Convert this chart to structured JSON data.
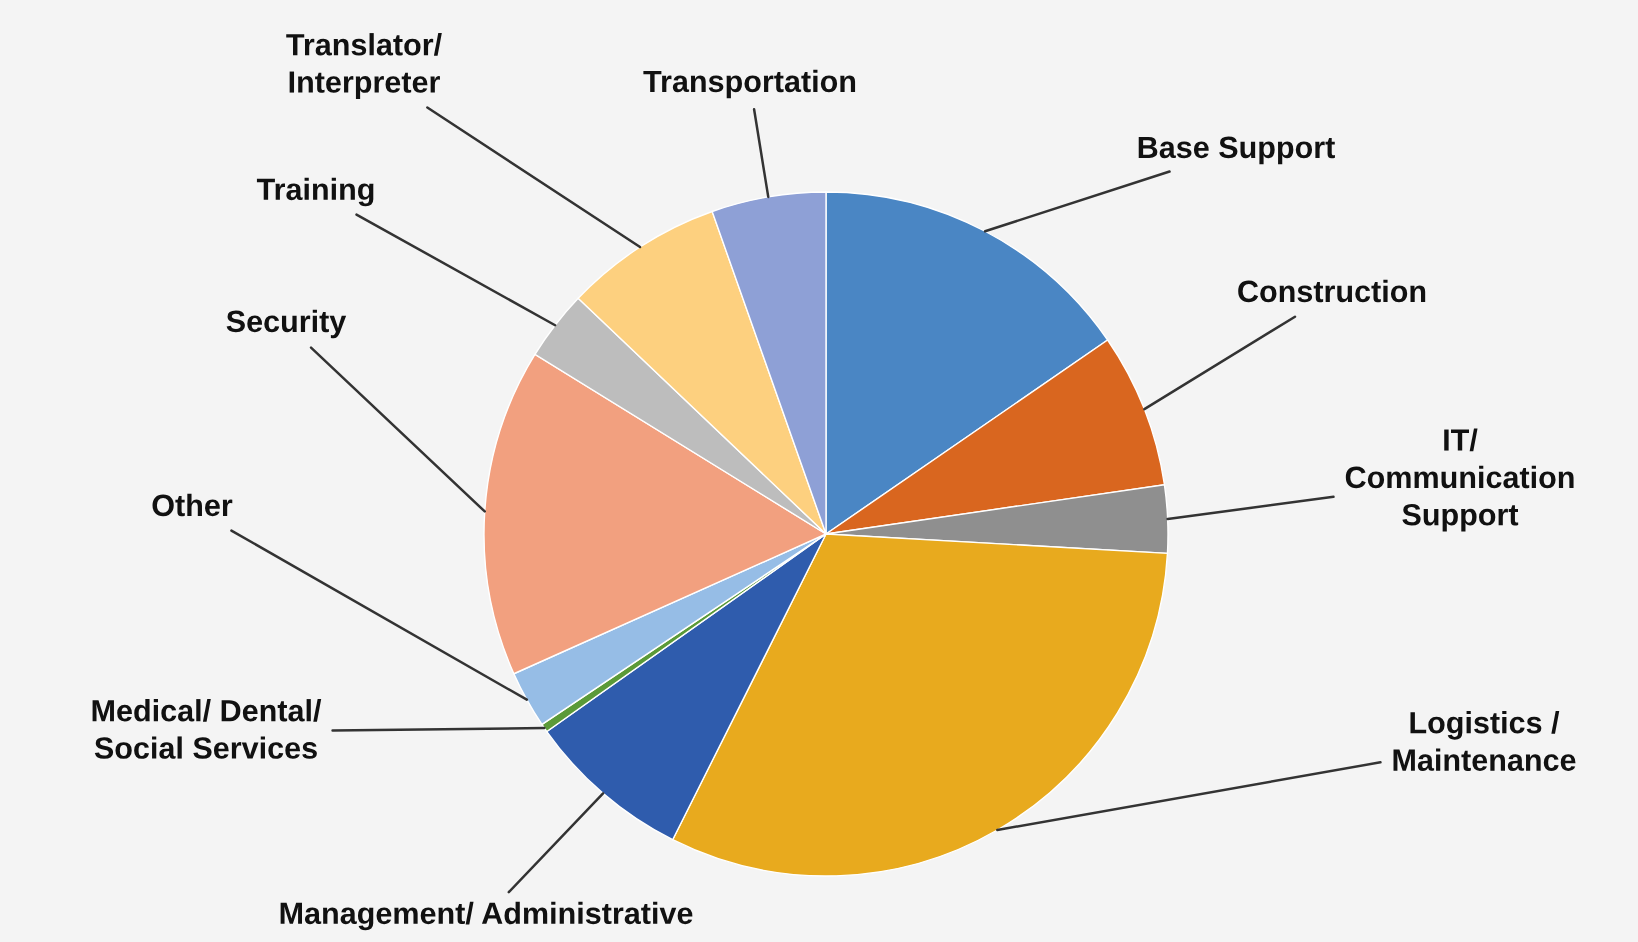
{
  "chart_data": {
    "type": "pie",
    "categories": [
      "Base Support",
      "Construction",
      "IT/\nCommunication\nSupport",
      "Logistics /\nMaintenance",
      "Management/ Administrative",
      "Medical/ Dental/\nSocial Services",
      "Other",
      "Security",
      "Training",
      "Translator/\nInterpreter",
      "Transportation"
    ],
    "values": [
      15.4,
      7.3,
      3.2,
      31.5,
      7.8,
      0.4,
      2.7,
      15.5,
      3.3,
      7.5,
      5.4
    ],
    "colors": [
      "#4a86c4",
      "#d9661f",
      "#8f8f8f",
      "#e8aa1e",
      "#2f5cad",
      "#5b9a38",
      "#96bde6",
      "#f2a07f",
      "#bdbdbd",
      "#fdd07f",
      "#8ea0d6"
    ],
    "legend": false
  }
}
